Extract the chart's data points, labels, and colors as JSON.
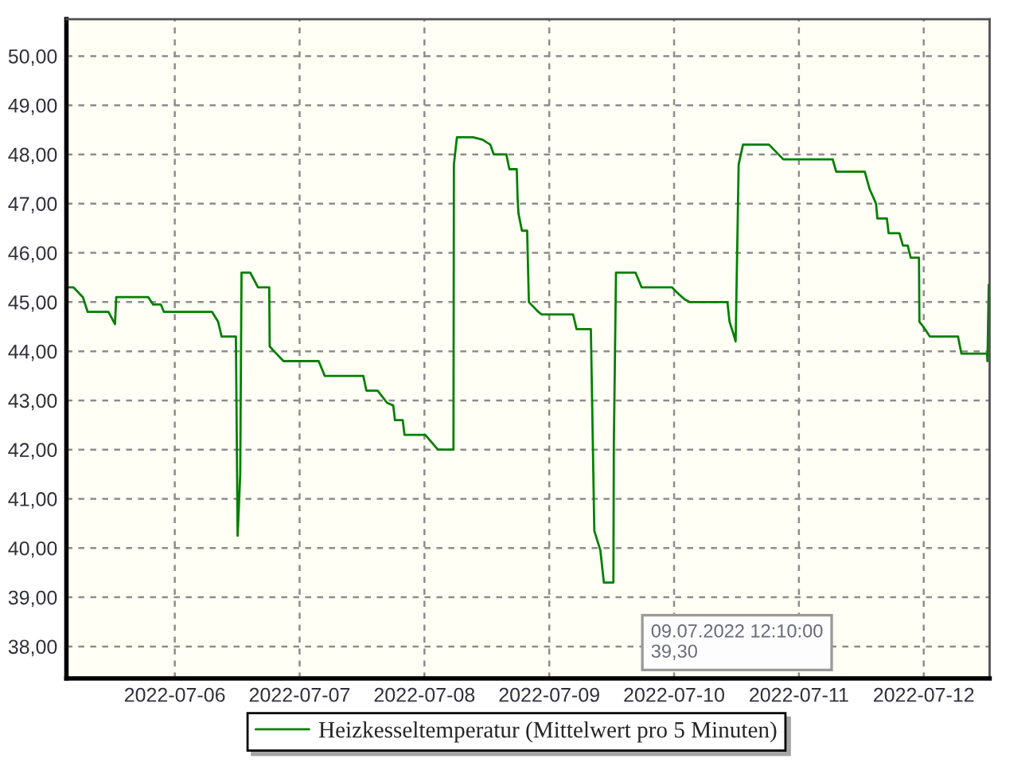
{
  "chart_data": {
    "type": "line",
    "x": [
      "2022-07-05T03:10",
      "2022-07-05T04:30",
      "2022-07-05T06:20",
      "2022-07-05T07:15",
      "2022-07-05T11:15",
      "2022-07-05T12:30",
      "2022-07-05T12:45",
      "2022-07-05T18:55",
      "2022-07-05T19:50",
      "2022-07-05T21:20",
      "2022-07-05T21:55",
      "2022-07-06T07:10",
      "2022-07-06T08:20",
      "2022-07-06T09:00",
      "2022-07-06T11:45",
      "2022-07-06T12:05",
      "2022-07-06T12:35",
      "2022-07-06T12:50",
      "2022-07-06T14:30",
      "2022-07-06T16:00",
      "2022-07-06T18:10",
      "2022-07-06T18:15",
      "2022-07-06T19:05",
      "2022-07-06T20:55",
      "2022-07-07T03:40",
      "2022-07-07T04:50",
      "2022-07-07T12:15",
      "2022-07-07T12:50",
      "2022-07-07T15:00",
      "2022-07-07T16:50",
      "2022-07-07T18:00",
      "2022-07-07T18:20",
      "2022-07-07T19:50",
      "2022-07-07T20:10",
      "2022-07-08T00:10",
      "2022-07-08T02:35",
      "2022-07-08T05:35",
      "2022-07-08T05:40",
      "2022-07-08T06:15",
      "2022-07-08T09:20",
      "2022-07-08T11:10",
      "2022-07-08T12:40",
      "2022-07-08T13:20",
      "2022-07-08T15:45",
      "2022-07-08T16:20",
      "2022-07-08T17:45",
      "2022-07-08T17:55",
      "2022-07-08T18:05",
      "2022-07-08T18:45",
      "2022-07-08T19:45",
      "2022-07-08T20:05",
      "2022-07-08T21:55",
      "2022-07-08T22:30",
      "2022-07-09T04:35",
      "2022-07-09T05:15",
      "2022-07-09T08:00",
      "2022-07-09T08:40",
      "2022-07-09T09:50",
      "2022-07-09T10:30",
      "2022-07-09T12:10",
      "2022-07-09T12:20",
      "2022-07-09T12:25",
      "2022-07-09T12:50",
      "2022-07-09T16:35",
      "2022-07-09T17:45",
      "2022-07-09T23:35",
      "2022-07-10T00:30",
      "2022-07-10T02:05",
      "2022-07-10T03:00",
      "2022-07-10T10:15",
      "2022-07-10T10:40",
      "2022-07-10T11:25",
      "2022-07-10T11:50",
      "2022-07-10T12:25",
      "2022-07-10T13:15",
      "2022-07-10T18:15",
      "2022-07-10T21:00",
      "2022-07-11T06:30",
      "2022-07-11T07:10",
      "2022-07-11T12:40",
      "2022-07-11T13:35",
      "2022-07-11T14:50",
      "2022-07-11T15:05",
      "2022-07-11T16:55",
      "2022-07-11T17:15",
      "2022-07-11T19:20",
      "2022-07-11T20:00",
      "2022-07-11T20:55",
      "2022-07-11T21:30",
      "2022-07-11T23:05",
      "2022-07-11T23:10",
      "2022-07-11T23:55",
      "2022-07-12T01:10",
      "2022-07-12T06:35",
      "2022-07-12T07:15",
      "2022-07-12T12:10",
      "2022-07-12T12:15",
      "2022-07-12T12:30"
    ],
    "series": [
      {
        "name": "Heizkesseltemperatur (Mittelwert pro 5 Minuten)",
        "color": "#008000",
        "values": [
          45.3,
          45.3,
          45.1,
          44.8,
          44.8,
          44.55,
          45.1,
          45.1,
          44.95,
          44.95,
          44.8,
          44.8,
          44.6,
          44.3,
          44.3,
          40.25,
          41.5,
          45.6,
          45.6,
          45.3,
          45.3,
          44.1,
          44.0,
          43.8,
          43.8,
          43.5,
          43.5,
          43.2,
          43.2,
          42.95,
          42.9,
          42.6,
          42.6,
          42.3,
          42.3,
          42.0,
          42.0,
          47.8,
          48.35,
          48.35,
          48.3,
          48.2,
          48.0,
          48.0,
          47.7,
          47.7,
          47.1,
          46.8,
          46.45,
          46.45,
          45.0,
          44.8,
          44.75,
          44.75,
          44.45,
          44.45,
          40.35,
          39.95,
          39.3,
          39.3,
          39.3,
          42.1,
          45.6,
          45.6,
          45.3,
          45.3,
          45.2,
          45.05,
          45.0,
          45.0,
          44.6,
          44.35,
          44.2,
          47.8,
          48.2,
          48.2,
          47.9,
          47.9,
          47.65,
          47.65,
          47.3,
          47.0,
          46.7,
          46.7,
          46.4,
          46.4,
          46.15,
          46.15,
          45.9,
          45.9,
          44.6,
          44.5,
          44.3,
          44.3,
          43.95,
          43.95,
          43.8,
          45.35
        ]
      }
    ],
    "xlim": [
      "2022-07-05T03:10",
      "2022-07-12T12:40"
    ],
    "xticks": [
      "2022-07-06",
      "2022-07-07",
      "2022-07-08",
      "2022-07-09",
      "2022-07-10",
      "2022-07-11",
      "2022-07-12"
    ],
    "ylim": [
      37.35,
      50.75
    ],
    "yticks": [
      {
        "value": 38,
        "label": "38,00"
      },
      {
        "value": 39,
        "label": "39,00"
      },
      {
        "value": 40,
        "label": "40,00"
      },
      {
        "value": 41,
        "label": "41,00"
      },
      {
        "value": 42,
        "label": "42,00"
      },
      {
        "value": 43,
        "label": "43,00"
      },
      {
        "value": 44,
        "label": "44,00"
      },
      {
        "value": 45,
        "label": "45,00"
      },
      {
        "value": 46,
        "label": "46,00"
      },
      {
        "value": 47,
        "label": "47,00"
      },
      {
        "value": 48,
        "label": "48,00"
      },
      {
        "value": 49,
        "label": "49,00"
      },
      {
        "value": 50,
        "label": "50,00"
      }
    ],
    "annotations": [
      "09.07.2022 12:10:00\n39,30"
    ],
    "grid": true,
    "legend": "bottom"
  }
}
